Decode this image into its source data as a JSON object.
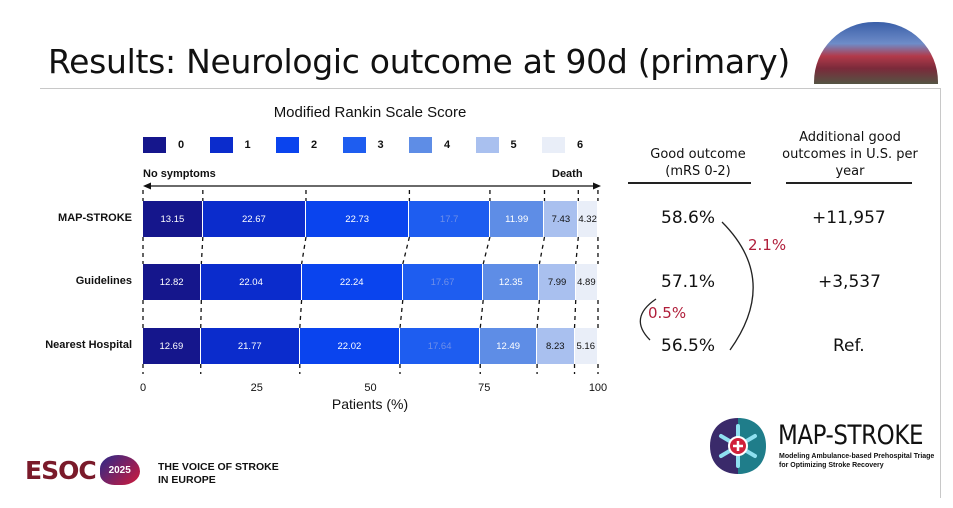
{
  "slide": {
    "title": "Results: Neurologic outcome at 90d (primary)"
  },
  "chart_data": {
    "type": "bar",
    "orientation": "horizontal",
    "stacked": true,
    "title": "Modified Rankin Scale Score",
    "xlabel": "Patients (%)",
    "xlim": [
      0,
      100
    ],
    "xticks": [
      "0",
      "25",
      "50",
      "75",
      "100"
    ],
    "scale_left_label": "No symptoms",
    "scale_right_label": "Death",
    "categories": [
      "MAP-STROKE",
      "Guidelines",
      "Nearest Hospital"
    ],
    "series": [
      {
        "name": "0",
        "color": "#15168c",
        "values": [
          13.15,
          12.82,
          12.69
        ]
      },
      {
        "name": "1",
        "color": "#0b2ccc",
        "values": [
          22.67,
          22.04,
          21.77
        ]
      },
      {
        "name": "2",
        "color": "#0a44ee",
        "values": [
          22.73,
          22.24,
          22.02
        ]
      },
      {
        "name": "3",
        "color": "#1e5df0",
        "values": [
          17.7,
          17.67,
          17.64
        ]
      },
      {
        "name": "4",
        "color": "#5e8de6",
        "values": [
          11.99,
          12.35,
          12.49
        ]
      },
      {
        "name": "5",
        "color": "#a9c0ef",
        "values": [
          7.43,
          7.99,
          8.23
        ]
      },
      {
        "name": "6",
        "color": "#e9eef8",
        "values": [
          4.32,
          4.89,
          5.16
        ]
      }
    ],
    "value_labels": [
      [
        "13.15",
        "22.67",
        "22.73",
        "17.7",
        "11.99",
        "7.43",
        "4.32"
      ],
      [
        "12.82",
        "22.04",
        "22.24",
        "17.67",
        "12.35",
        "7.99",
        "4.89"
      ],
      [
        "12.69",
        "21.77",
        "22.02",
        "17.64",
        "12.49",
        "8.23",
        "5.16"
      ]
    ]
  },
  "table": {
    "col1_header_line1": "Good outcome",
    "col1_header_line2": "(mRS 0-2)",
    "col2_header_line1": "Additional good",
    "col2_header_line2": "outcomes in U.S. per",
    "col2_header_line3": "year",
    "good_outcome": [
      "58.6%",
      "57.1%",
      "56.5%"
    ],
    "additional": [
      "+11,957",
      "+3,537",
      "Ref."
    ],
    "diff_big": "2.1%",
    "diff_small": "0.5%",
    "diff_color": "#b01e3a"
  },
  "footer": {
    "esoc_word": "ESOC",
    "esoc_year": "2025",
    "esoc_tagline": "THE VOICE OF STROKE IN EUROPE",
    "ms_name": "MAP-STROKE",
    "ms_tagline": "Modeling Ambulance-based Prehospital Triage for Optimizing Stroke Recovery"
  }
}
